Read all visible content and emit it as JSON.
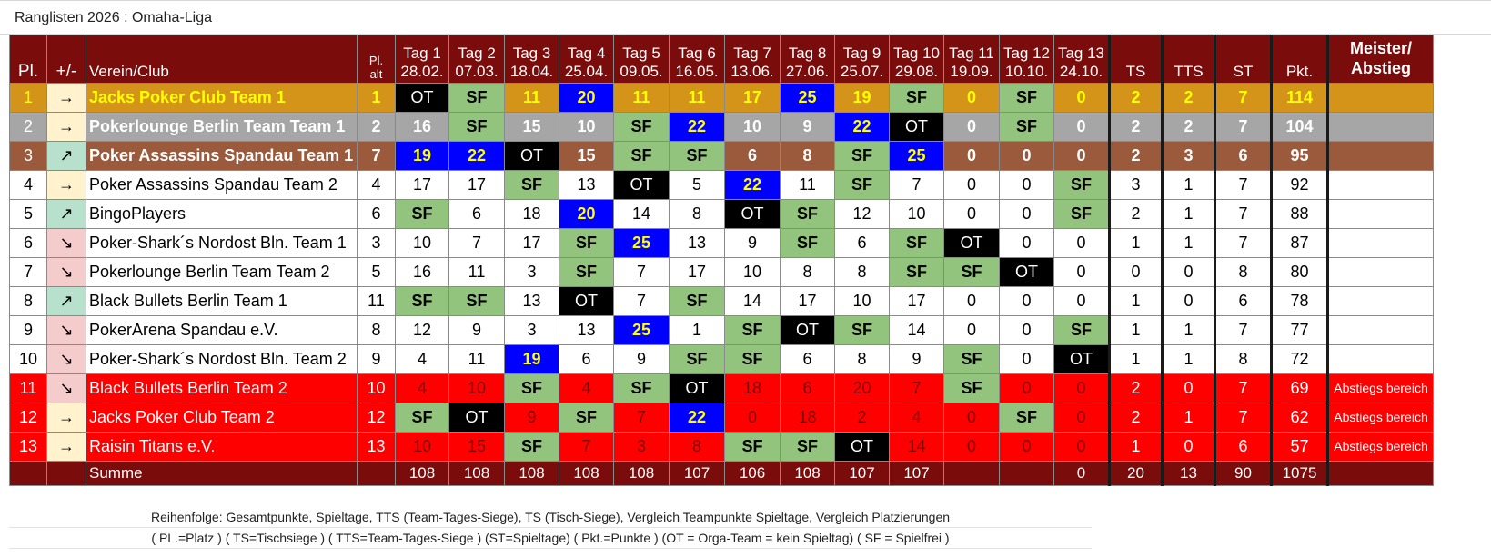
{
  "window": {
    "title": "Ranglisten 2026 : Omaha-Liga"
  },
  "colors": {
    "header": "#7a0c0c",
    "gold": "#d4941a",
    "silver": "#a6a6a6",
    "bronze": "#9b5a3c",
    "relegation": "#ff0000",
    "spielfrei": "#93c47d",
    "orga": "#000000",
    "top": "#0000ff",
    "arrow_up": "#b7e1cd",
    "arrow_down": "#f4cccc",
    "arrow_same": "#fff2cc"
  },
  "headers": {
    "pl": "Pl.",
    "delta": "+/-",
    "club": "Verein/Club",
    "pl_alt_1": "Pl.",
    "pl_alt_2": "alt",
    "days": [
      {
        "name": "Tag 1",
        "date": "28.02."
      },
      {
        "name": "Tag 2",
        "date": "07.03."
      },
      {
        "name": "Tag 3",
        "date": "18.04."
      },
      {
        "name": "Tag 4",
        "date": "25.04."
      },
      {
        "name": "Tag 5",
        "date": "09.05."
      },
      {
        "name": "Tag 6",
        "date": "16.05."
      },
      {
        "name": "Tag 7",
        "date": "13.06."
      },
      {
        "name": "Tag 8",
        "date": "27.06."
      },
      {
        "name": "Tag 9",
        "date": "25.07."
      },
      {
        "name": "Tag 10",
        "date": "29.08."
      },
      {
        "name": "Tag 11",
        "date": "19.09."
      },
      {
        "name": "Tag 12",
        "date": "10.10."
      },
      {
        "name": "Tag 13",
        "date": "24.10."
      }
    ],
    "ts": "TS",
    "tts": "TTS",
    "st": "ST",
    "pkt": "Pkt.",
    "meister_1": "Meister/",
    "meister_2": "Abstieg"
  },
  "rows": [
    {
      "pl": "1",
      "arrow": "→",
      "arrow_type": "same",
      "club": "Jacks Poker Club Team 1",
      "pl_alt": "1",
      "style": "gold",
      "days": [
        "OT",
        "SF",
        "11",
        "20",
        "11",
        "11",
        "17",
        "25",
        "19",
        "SF",
        "0",
        "SF",
        "0"
      ],
      "ts": "2",
      "tts": "2",
      "st": "7",
      "pkt": "114",
      "status": ""
    },
    {
      "pl": "2",
      "arrow": "→",
      "arrow_type": "same",
      "club": "Pokerlounge Berlin Team Team 1",
      "pl_alt": "2",
      "style": "silver",
      "days": [
        "16",
        "SF",
        "15",
        "10",
        "SF",
        "22",
        "10",
        "9",
        "22",
        "OT",
        "0",
        "SF",
        "0"
      ],
      "ts": "2",
      "tts": "2",
      "st": "7",
      "pkt": "104",
      "status": ""
    },
    {
      "pl": "3",
      "arrow": "↗",
      "arrow_type": "up",
      "club": "Poker Assassins Spandau Team 1",
      "pl_alt": "7",
      "style": "bronze",
      "days": [
        "19",
        "22",
        "OT",
        "15",
        "SF",
        "SF",
        "6",
        "8",
        "SF",
        "25",
        "0",
        "0",
        "0"
      ],
      "ts": "2",
      "tts": "3",
      "st": "6",
      "pkt": "95",
      "status": ""
    },
    {
      "pl": "4",
      "arrow": "→",
      "arrow_type": "same",
      "club": "Poker Assassins Spandau Team 2",
      "pl_alt": "4",
      "style": "normal",
      "days": [
        "17",
        "17",
        "SF",
        "13",
        "OT",
        "5",
        "22",
        "11",
        "SF",
        "7",
        "0",
        "0",
        "SF"
      ],
      "ts": "3",
      "tts": "1",
      "st": "7",
      "pkt": "92",
      "status": ""
    },
    {
      "pl": "5",
      "arrow": "↗",
      "arrow_type": "up",
      "club": "BingoPlayers",
      "pl_alt": "6",
      "style": "normal",
      "days": [
        "SF",
        "6",
        "18",
        "20",
        "14",
        "8",
        "OT",
        "SF",
        "12",
        "10",
        "0",
        "0",
        "SF"
      ],
      "ts": "2",
      "tts": "1",
      "st": "7",
      "pkt": "88",
      "status": ""
    },
    {
      "pl": "6",
      "arrow": "↘",
      "arrow_type": "down",
      "club": "Poker-Shark´s Nordost Bln. Team 1",
      "pl_alt": "3",
      "style": "normal",
      "days": [
        "10",
        "7",
        "17",
        "SF",
        "25",
        "13",
        "9",
        "SF",
        "6",
        "SF",
        "OT",
        "0",
        "0"
      ],
      "ts": "1",
      "tts": "1",
      "st": "7",
      "pkt": "87",
      "status": ""
    },
    {
      "pl": "7",
      "arrow": "↘",
      "arrow_type": "down",
      "club": "Pokerlounge Berlin Team Team 2",
      "pl_alt": "5",
      "style": "normal",
      "days": [
        "16",
        "11",
        "3",
        "SF",
        "7",
        "17",
        "10",
        "8",
        "8",
        "SF",
        "SF",
        "OT",
        "0"
      ],
      "ts": "0",
      "tts": "0",
      "st": "8",
      "pkt": "80",
      "status": ""
    },
    {
      "pl": "8",
      "arrow": "↗",
      "arrow_type": "up",
      "club": "Black Bullets Berlin Team 1",
      "pl_alt": "11",
      "style": "normal",
      "days": [
        "SF",
        "SF",
        "13",
        "OT",
        "7",
        "SF",
        "14",
        "17",
        "10",
        "17",
        "0",
        "0",
        "0"
      ],
      "ts": "1",
      "tts": "0",
      "st": "6",
      "pkt": "78",
      "status": ""
    },
    {
      "pl": "9",
      "arrow": "↘",
      "arrow_type": "down",
      "club": "PokerArena Spandau e.V.",
      "pl_alt": "8",
      "style": "normal",
      "days": [
        "12",
        "9",
        "3",
        "13",
        "25",
        "1",
        "SF",
        "OT",
        "SF",
        "14",
        "0",
        "0",
        "SF"
      ],
      "ts": "1",
      "tts": "1",
      "st": "7",
      "pkt": "77",
      "status": ""
    },
    {
      "pl": "10",
      "arrow": "↘",
      "arrow_type": "down",
      "club": "Poker-Shark´s Nordost Bln. Team 2",
      "pl_alt": "9",
      "style": "normal",
      "days": [
        "4",
        "11",
        "19",
        "6",
        "9",
        "SF",
        "SF",
        "6",
        "8",
        "9",
        "SF",
        "0",
        "OT"
      ],
      "ts": "1",
      "tts": "1",
      "st": "8",
      "pkt": "72",
      "status": ""
    },
    {
      "pl": "11",
      "arrow": "↘",
      "arrow_type": "down",
      "club": "Black Bullets Berlin Team 2",
      "pl_alt": "10",
      "style": "relegation",
      "days": [
        "4",
        "10",
        "SF",
        "4",
        "SF",
        "OT",
        "18",
        "6",
        "20",
        "7",
        "SF",
        "0",
        "0"
      ],
      "ts": "2",
      "tts": "0",
      "st": "7",
      "pkt": "69",
      "status": "Abstiegs bereich"
    },
    {
      "pl": "12",
      "arrow": "→",
      "arrow_type": "same",
      "club": "Jacks Poker Club Team 2",
      "pl_alt": "12",
      "style": "relegation",
      "days": [
        "SF",
        "OT",
        "9",
        "SF",
        "7",
        "22",
        "0",
        "18",
        "2",
        "4",
        "0",
        "SF",
        "0"
      ],
      "ts": "2",
      "tts": "1",
      "st": "7",
      "pkt": "62",
      "status": "Abstiegs bereich"
    },
    {
      "pl": "13",
      "arrow": "→",
      "arrow_type": "same",
      "club": "Raisin Titans e.V.",
      "pl_alt": "13",
      "style": "relegation",
      "days": [
        "10",
        "15",
        "SF",
        "7",
        "3",
        "8",
        "SF",
        "SF",
        "OT",
        "14",
        "0",
        "0",
        "0"
      ],
      "ts": "1",
      "tts": "0",
      "st": "6",
      "pkt": "57",
      "status": "Abstiegs bereich"
    }
  ],
  "sum": {
    "label": "Summe",
    "days": [
      "108",
      "108",
      "108",
      "108",
      "108",
      "107",
      "106",
      "108",
      "107",
      "107",
      "",
      "",
      "0"
    ],
    "ts": "20",
    "tts": "13",
    "st": "90",
    "pkt": "1075"
  },
  "footer": {
    "line1": "Reihenfolge: Gesamtpunkte, Spieltage, TTS (Team-Tages-Siege), TS (Tisch-Siege), Vergleich Teampunkte Spieltage, Vergleich Platzierungen",
    "line2": "( PL.=Platz ) ( TS=Tischsiege ) ( TTS=Team-Tages-Siege ) (ST=Spieltage) ( Pkt.=Punkte ) (OT = Orga-Team = kein Spieltag) ( SF = Spielfrei )"
  }
}
